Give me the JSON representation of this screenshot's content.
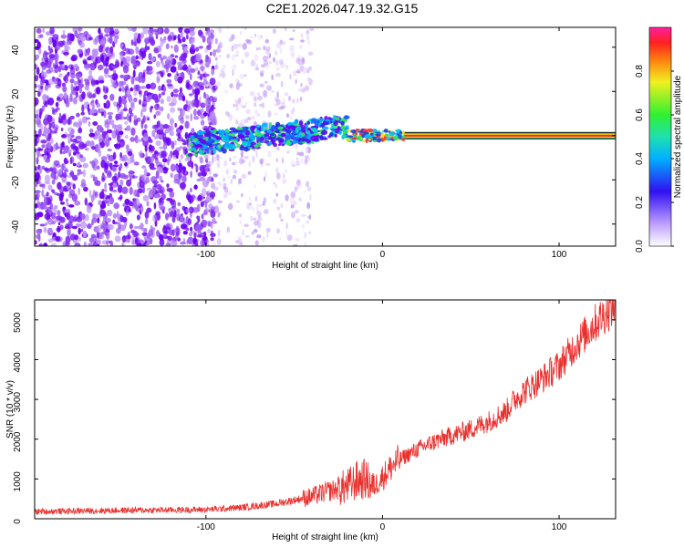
{
  "title": "C2E1.2026.047.19.32.G15",
  "chart_data": [
    {
      "type": "heatmap",
      "xlabel": "Height of straight line (km)",
      "ylabel": "Frequency (Hz)",
      "xlim": [
        -197,
        132
      ],
      "ylim": [
        -50,
        49
      ],
      "xticks": [
        "-100",
        "0",
        "100"
      ],
      "xtick_values": [
        -100,
        0,
        100
      ],
      "yticks": [
        "-40",
        "-20",
        "0",
        "20",
        "40"
      ],
      "ytick_values": [
        -40,
        -20,
        0,
        20,
        40
      ],
      "description_points": {
        "noise_region_x": [
          -197,
          -100
        ],
        "ridge_x": [
          -110,
          -20
        ],
        "ridge_freq": [
          -5,
          10
        ],
        "tone_x": [
          -20,
          132
        ],
        "tone_freq": 0
      },
      "colorbar": {
        "label": "Normalized spectral amplitude",
        "range": [
          0.0,
          1.0
        ],
        "ticks": [
          "0.0",
          "0.2",
          "0.4",
          "0.6",
          "0.8"
        ],
        "tick_values": [
          0.0,
          0.2,
          0.4,
          0.6,
          0.8
        ]
      }
    },
    {
      "type": "line",
      "xlabel": "Height of straight line (km)",
      "ylabel": "SNR (10 * v/v)",
      "xlim": [
        -197,
        132
      ],
      "ylim": [
        0,
        5500
      ],
      "xticks": [
        "-100",
        "0",
        "100"
      ],
      "xtick_values": [
        -100,
        0,
        100
      ],
      "yticks": [
        "0",
        "1000",
        "2000",
        "3000",
        "4000",
        "5000"
      ],
      "ytick_values": [
        0,
        1000,
        2000,
        3000,
        4000,
        5000
      ],
      "series": [
        {
          "name": "SNR",
          "color": "#e8302c",
          "x": [
            -197,
            -150,
            -120,
            -100,
            -80,
            -60,
            -40,
            -30,
            -20,
            -15,
            -10,
            -5,
            0,
            5,
            10,
            20,
            30,
            40,
            50,
            60,
            70,
            75,
            80,
            90,
            100,
            110,
            120,
            132
          ],
          "y": [
            180,
            210,
            220,
            230,
            280,
            380,
            560,
            700,
            800,
            950,
            1000,
            800,
            1050,
            1300,
            1500,
            1750,
            1950,
            2100,
            2250,
            2450,
            2700,
            3000,
            3200,
            3500,
            3850,
            4400,
            4900,
            5400
          ]
        }
      ]
    }
  ]
}
